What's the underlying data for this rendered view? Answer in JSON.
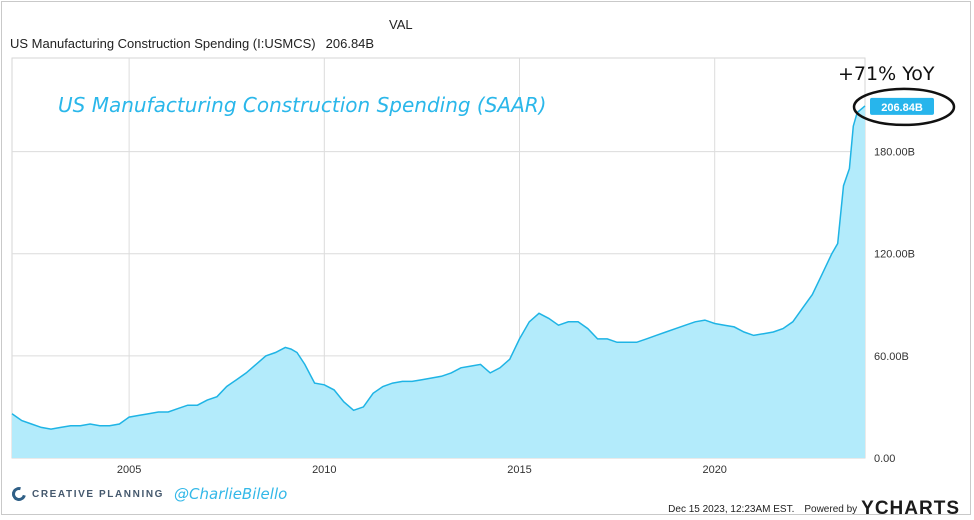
{
  "header": {
    "val_label": "VAL",
    "series_label": "US Manufacturing Construction Spending (I:USMCS)",
    "series_value": "206.84B"
  },
  "chart_data": {
    "type": "area",
    "title": "US Manufacturing Construction Spending (SAAR)",
    "annotation": "+71% YoY",
    "last_value_label": "206.84B",
    "xlabel": "",
    "ylabel": "",
    "x_ticks": [
      "2005",
      "2010",
      "2015",
      "2020"
    ],
    "y_ticks": [
      "0.00",
      "60.00B",
      "120.00B",
      "180.00B"
    ],
    "xlim": [
      2002.0,
      2023.85
    ],
    "ylim": [
      0,
      235
    ],
    "grid": true,
    "legend": "none",
    "series": [
      {
        "x": [
          2002.0,
          2002.25,
          2002.5,
          2002.75,
          2003.0,
          2003.25,
          2003.5,
          2003.75,
          2004.0,
          2004.25,
          2004.5,
          2004.75,
          2005.0,
          2005.25,
          2005.5,
          2005.75,
          2006.0,
          2006.25,
          2006.5,
          2006.75,
          2007.0,
          2007.25,
          2007.5,
          2007.75,
          2008.0,
          2008.25,
          2008.5,
          2008.75,
          2009.0,
          2009.15,
          2009.3,
          2009.5,
          2009.75,
          2010.0,
          2010.25,
          2010.5,
          2010.75,
          2011.0,
          2011.25,
          2011.5,
          2011.75,
          2012.0,
          2012.25,
          2012.5,
          2012.75,
          2013.0,
          2013.25,
          2013.5,
          2013.75,
          2014.0,
          2014.25,
          2014.5,
          2014.75,
          2015.0,
          2015.25,
          2015.5,
          2015.75,
          2016.0,
          2016.25,
          2016.5,
          2016.75,
          2017.0,
          2017.25,
          2017.5,
          2017.75,
          2018.0,
          2018.25,
          2018.5,
          2018.75,
          2019.0,
          2019.25,
          2019.5,
          2019.75,
          2020.0,
          2020.25,
          2020.5,
          2020.75,
          2021.0,
          2021.25,
          2021.5,
          2021.75,
          2022.0,
          2022.25,
          2022.5,
          2022.75,
          2023.0,
          2023.15,
          2023.3,
          2023.45,
          2023.55,
          2023.65,
          2023.85
        ],
        "y": [
          26,
          22,
          20,
          18,
          17,
          18,
          19,
          19,
          20,
          19,
          19,
          20,
          24,
          25,
          26,
          27,
          27,
          29,
          31,
          31,
          34,
          36,
          42,
          46,
          50,
          55,
          60,
          62,
          65,
          64,
          62,
          55,
          44,
          43,
          40,
          33,
          28,
          30,
          38,
          42,
          44,
          45,
          45,
          46,
          47,
          48,
          50,
          53,
          54,
          55,
          50,
          53,
          58,
          70,
          80,
          85,
          82,
          78,
          80,
          80,
          76,
          70,
          70,
          68,
          68,
          68,
          70,
          72,
          74,
          76,
          78,
          80,
          81,
          79,
          78,
          77,
          74,
          72,
          73,
          74,
          76,
          80,
          88,
          96,
          108,
          120,
          126,
          160,
          170,
          195,
          203,
          206.84
        ]
      }
    ]
  },
  "footer": {
    "brand": "CREATIVE PLANNING",
    "handle": "@CharlieBilello",
    "timestamp": "Dec 15 2023, 12:23AM EST.",
    "powered_by": "Powered by",
    "ycharts": "YCHARTS"
  },
  "colors": {
    "area_fill": "#b3ebfb",
    "line": "#1fb4e5",
    "grid": "#dcdcdc",
    "accent": "#2ab7ea",
    "ellipse": "#111111"
  }
}
